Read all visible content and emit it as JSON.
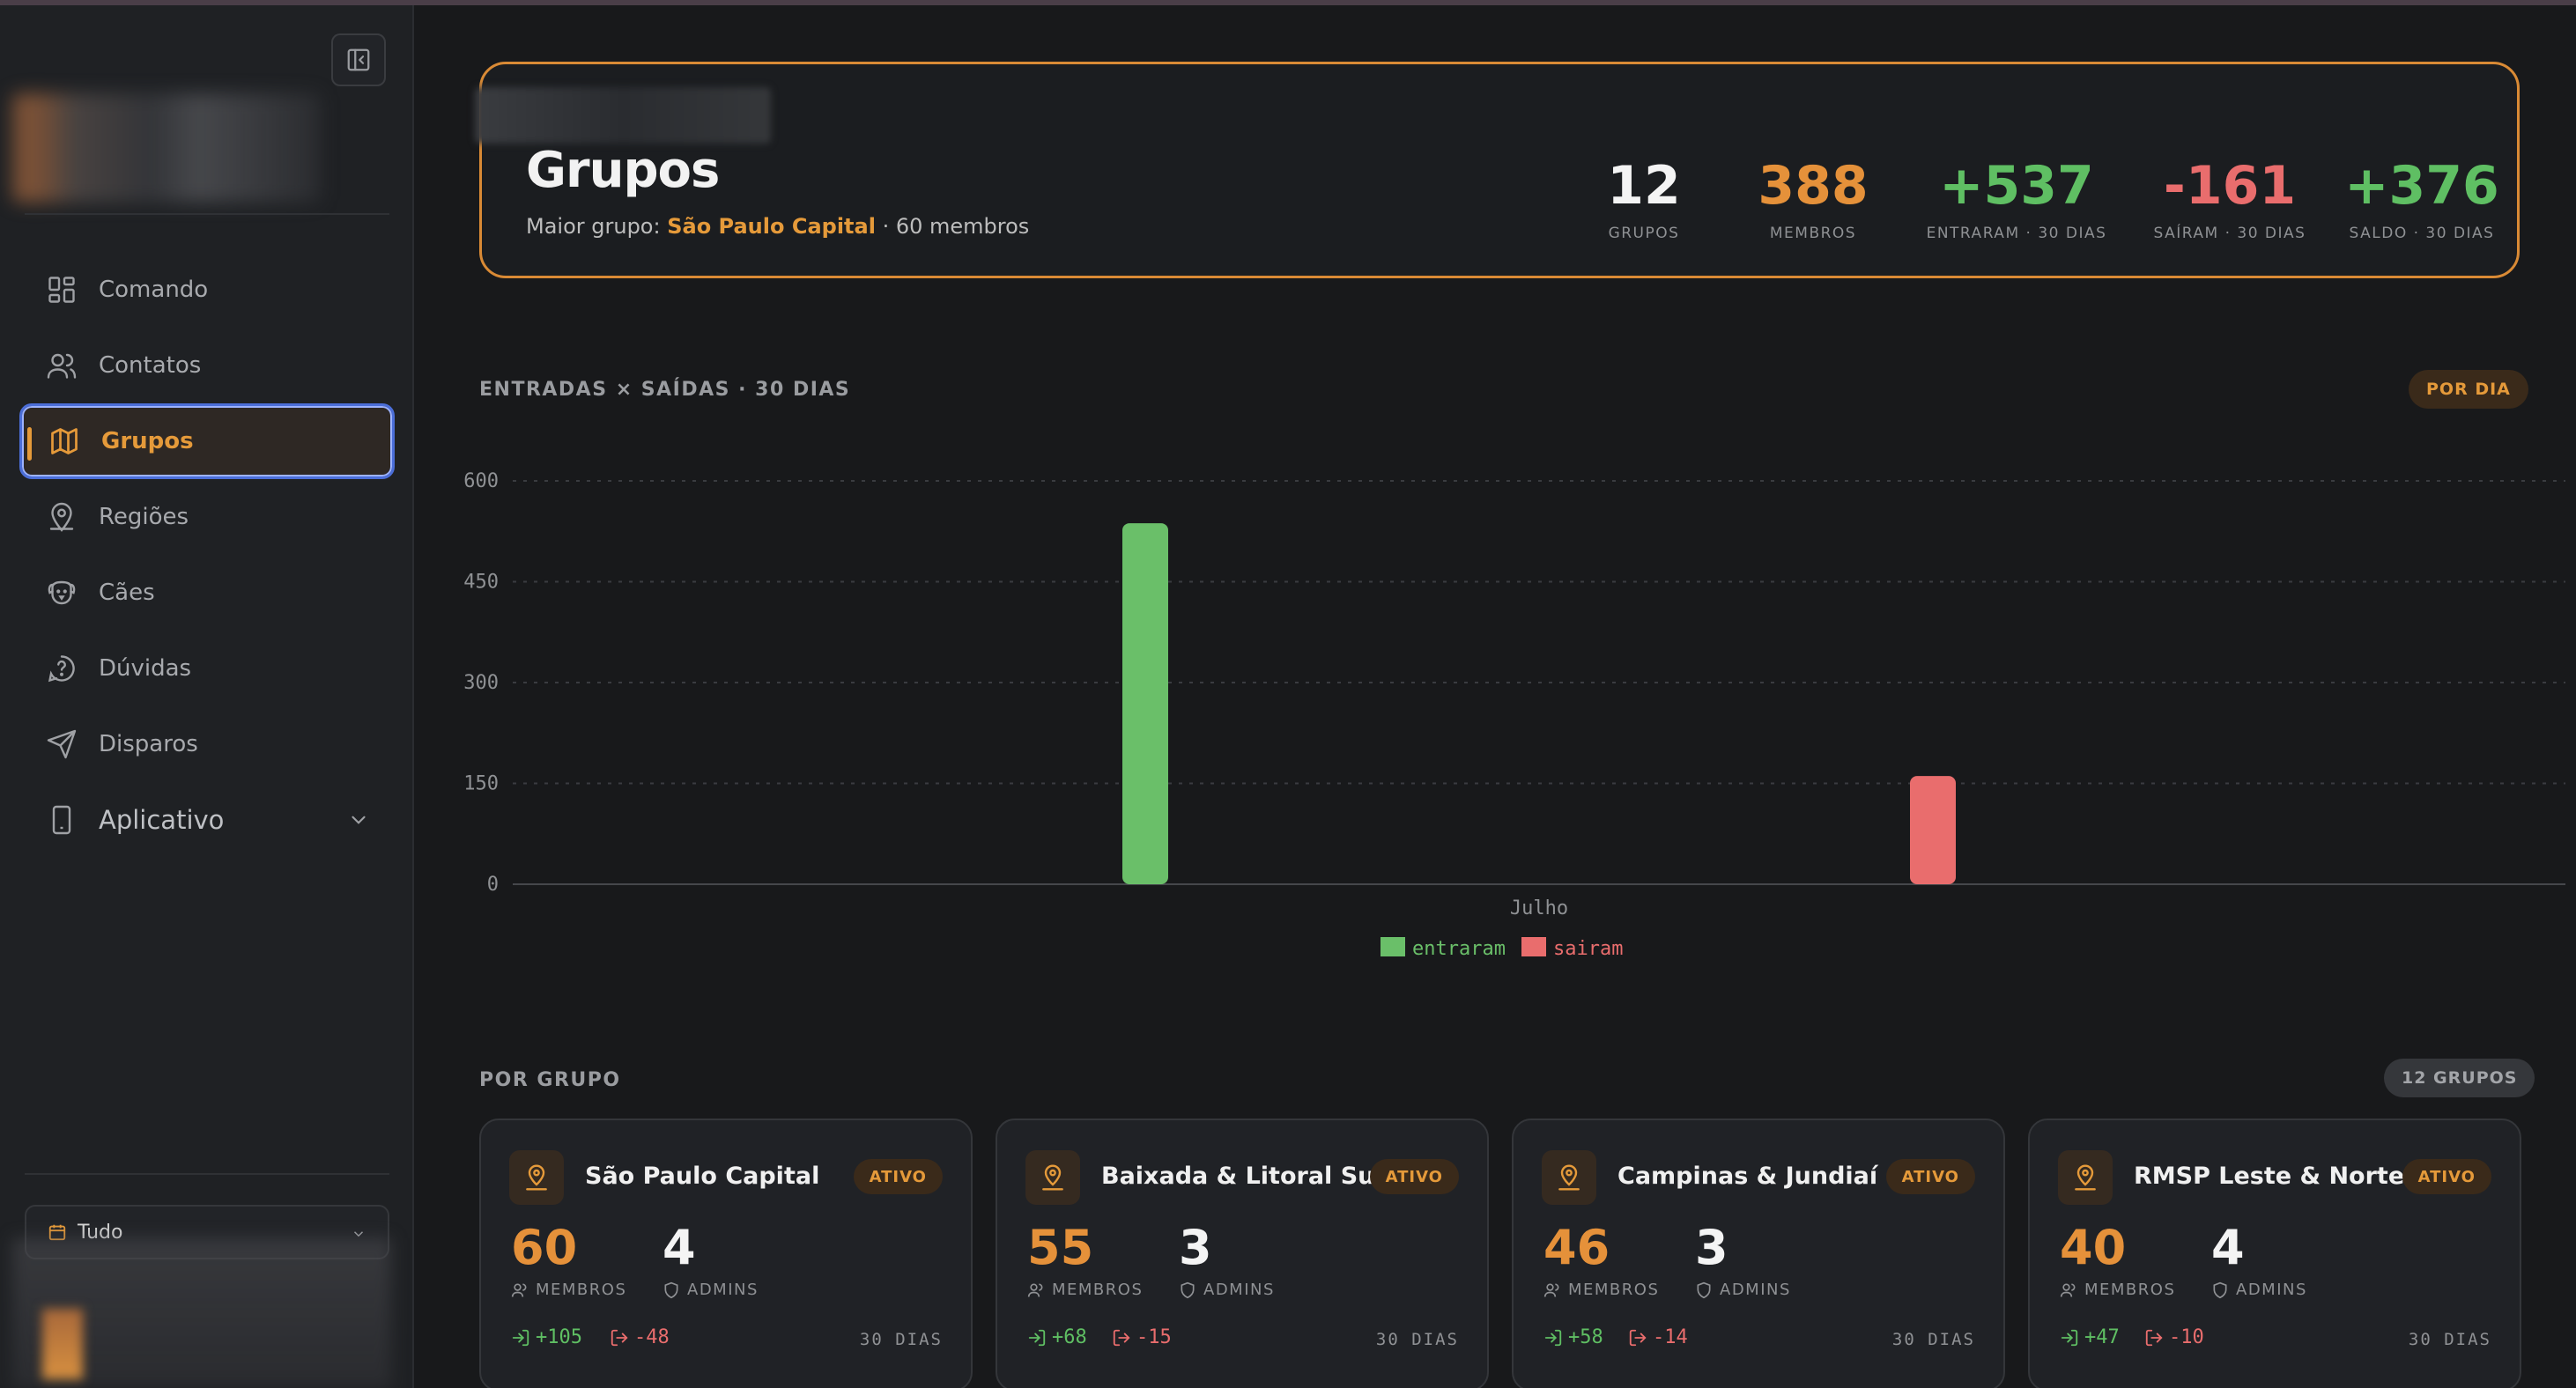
{
  "sidebar": {
    "nav": [
      {
        "label": "Comando",
        "icon": "dashboard-grid-icon"
      },
      {
        "label": "Contatos",
        "icon": "users-icon"
      },
      {
        "label": "Grupos",
        "icon": "map-icon",
        "active": true
      },
      {
        "label": "Regiões",
        "icon": "user-pin-icon"
      },
      {
        "label": "Cães",
        "icon": "dog-icon"
      },
      {
        "label": "Dúvidas",
        "icon": "help-circle-icon"
      },
      {
        "label": "Disparos",
        "icon": "send-icon"
      },
      {
        "label": "Aplicativo",
        "icon": "smartphone-icon"
      }
    ],
    "filter": {
      "label": "Tudo"
    }
  },
  "hero": {
    "title": "Grupos",
    "subtitle_prefix": "Maior grupo:",
    "largest_group": "São Paulo Capital",
    "subtitle_suffix": "· 60 membros",
    "stats": [
      {
        "value": "12",
        "label": "GRUPOS",
        "color": "#f4f4f4"
      },
      {
        "value": "388",
        "label": "MEMBROS",
        "color": "#e5913a"
      },
      {
        "value": "+537",
        "label": "ENTRARAM · 30 DIAS",
        "color": "#5fbf63"
      },
      {
        "value": "-161",
        "label": "SAÍRAM · 30 DIAS",
        "color": "#e96d6d"
      },
      {
        "value": "+376",
        "label": "SALDO · 30 DIAS",
        "color": "#5fbf63"
      }
    ]
  },
  "chart_section": {
    "title": "ENTRADAS × SAÍDAS · 30 DIAS",
    "badge": "POR DIA"
  },
  "chart_data": {
    "type": "bar",
    "categories": [
      "Julho"
    ],
    "series": [
      {
        "name": "entraram",
        "values": [
          537
        ],
        "color": "#6abf69"
      },
      {
        "name": "sairam",
        "values": [
          161
        ],
        "color": "#e96d6d"
      }
    ],
    "yticks": [
      "0",
      "150",
      "300",
      "450",
      "600"
    ],
    "ylim": [
      0,
      600
    ],
    "grid": true,
    "legend": "bottom-center"
  },
  "groups_section": {
    "title": "POR GRUPO",
    "badge": "12 GRUPOS"
  },
  "groups": [
    {
      "name": "São Paulo Capital",
      "status": "ATIVO",
      "members": "60",
      "members_label": "MEMBROS",
      "admins": "4",
      "admins_label": "ADMINS",
      "in": "+105",
      "out": "-48",
      "period": "30 DIAS"
    },
    {
      "name": "Baixada & Litoral Sul",
      "status": "ATIVO",
      "members": "55",
      "members_label": "MEMBROS",
      "admins": "3",
      "admins_label": "ADMINS",
      "in": "+68",
      "out": "-15",
      "period": "30 DIAS"
    },
    {
      "name": "Campinas & Jundiaí",
      "status": "ATIVO",
      "members": "46",
      "members_label": "MEMBROS",
      "admins": "3",
      "admins_label": "ADMINS",
      "in": "+58",
      "out": "-14",
      "period": "30 DIAS"
    },
    {
      "name": "RMSP Leste & Norte",
      "status": "ATIVO",
      "members": "40",
      "members_label": "MEMBROS",
      "admins": "4",
      "admins_label": "ADMINS",
      "in": "+47",
      "out": "-10",
      "period": "30 DIAS"
    }
  ]
}
